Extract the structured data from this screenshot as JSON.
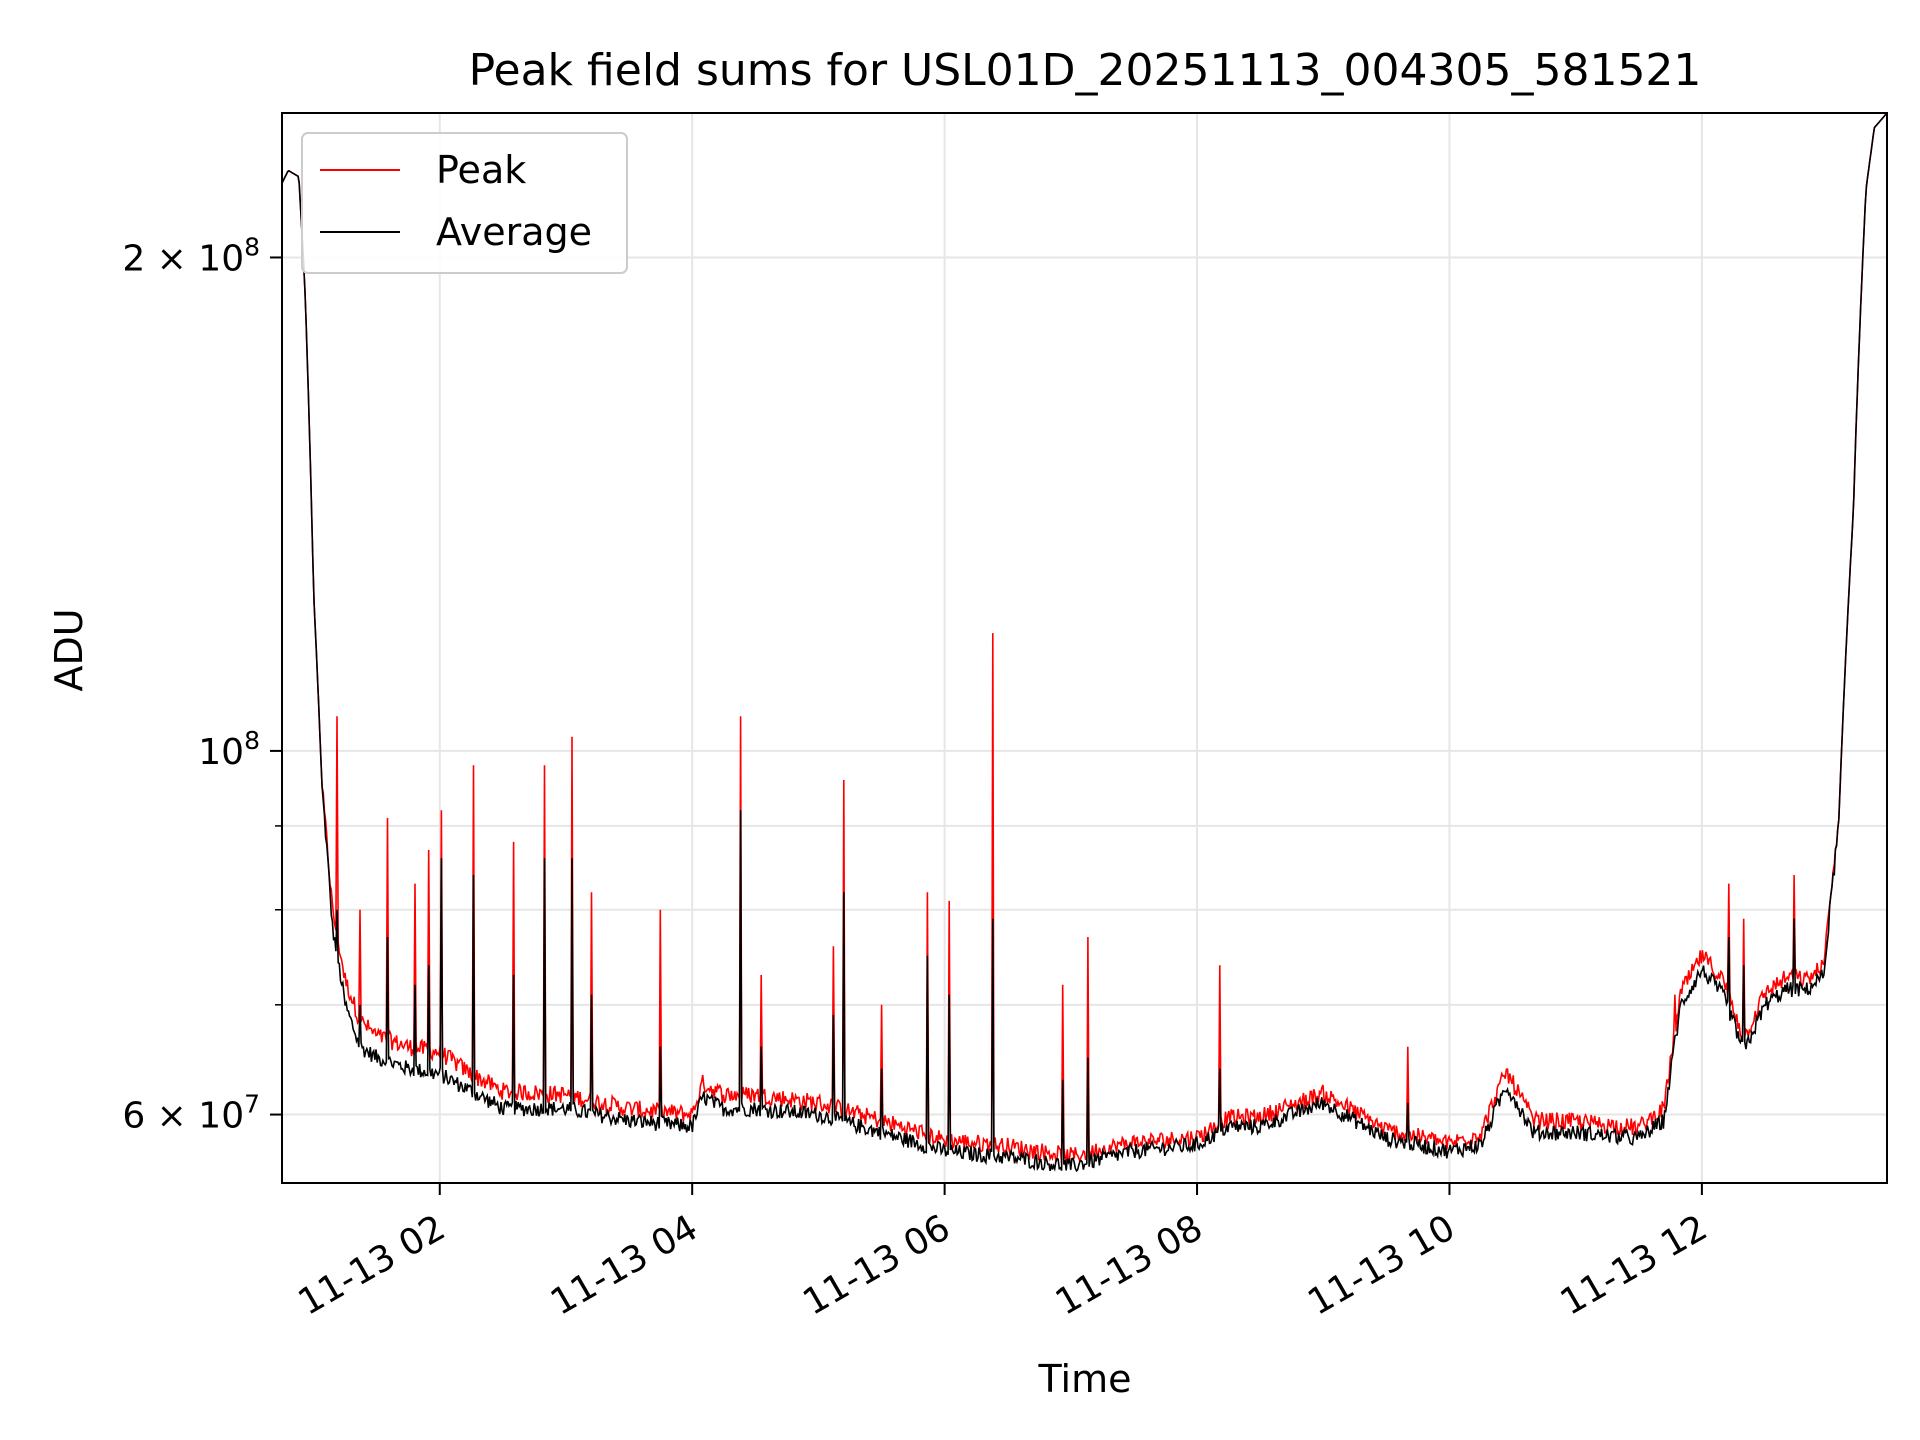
{
  "chart_data": {
    "type": "line",
    "title": "Peak field sums for USL01D_20251113_004305_581521",
    "xlabel": "Time",
    "ylabel": "ADU",
    "yscale": "log",
    "xlim": [
      "2025-11-13T00:45",
      "2025-11-13T13:28"
    ],
    "ylim": [
      54500000,
      245000000
    ],
    "grid": true,
    "legend_position": "top-left",
    "x_ticks": [
      {
        "value": "2025-11-13T02:00",
        "label": "11-13 02"
      },
      {
        "value": "2025-11-13T04:00",
        "label": "11-13 04"
      },
      {
        "value": "2025-11-13T06:00",
        "label": "11-13 06"
      },
      {
        "value": "2025-11-13T08:00",
        "label": "11-13 08"
      },
      {
        "value": "2025-11-13T10:00",
        "label": "11-13 10"
      },
      {
        "value": "2025-11-13T12:00",
        "label": "11-13 12"
      }
    ],
    "y_major_ticks": [
      {
        "value": 60000000,
        "mantissa": "6",
        "exponent": "7"
      },
      {
        "value": 100000000,
        "mantissa": "",
        "exponent": "8"
      },
      {
        "value": 200000000,
        "mantissa": "2",
        "exponent": "8"
      }
    ],
    "y_minor_ticks": [
      70000000,
      80000000,
      90000000
    ],
    "baseline": {
      "times": [
        "2025-11-13T00:45",
        "2025-11-13T00:48",
        "2025-11-13T00:53",
        "2025-11-13T00:56",
        "2025-11-13T01:00",
        "2025-11-13T01:04",
        "2025-11-13T01:09",
        "2025-11-13T01:15",
        "2025-11-13T01:22",
        "2025-11-13T01:30",
        "2025-11-13T01:45",
        "2025-11-13T02:00",
        "2025-11-13T02:15",
        "2025-11-13T02:30",
        "2025-11-13T03:00",
        "2025-11-13T03:30",
        "2025-11-13T04:00",
        "2025-11-13T04:05",
        "2025-11-13T04:15",
        "2025-11-13T04:30",
        "2025-11-13T05:00",
        "2025-11-13T05:30",
        "2025-11-13T06:00",
        "2025-11-13T06:30",
        "2025-11-13T07:00",
        "2025-11-13T07:30",
        "2025-11-13T08:00",
        "2025-11-13T08:15",
        "2025-11-13T08:30",
        "2025-11-13T09:00",
        "2025-11-13T09:30",
        "2025-11-13T10:00",
        "2025-11-13T10:15",
        "2025-11-13T10:27",
        "2025-11-13T10:40",
        "2025-11-13T11:00",
        "2025-11-13T11:30",
        "2025-11-13T11:42",
        "2025-11-13T11:50",
        "2025-11-13T12:00",
        "2025-11-13T12:10",
        "2025-11-13T12:20",
        "2025-11-13T12:30",
        "2025-11-13T12:40",
        "2025-11-13T12:50",
        "2025-11-13T12:58",
        "2025-11-13T13:05",
        "2025-11-13T13:12",
        "2025-11-13T13:18",
        "2025-11-13T13:22",
        "2025-11-13T13:28"
      ],
      "average": [
        222000000,
        226000000,
        224000000,
        190000000,
        125000000,
        95000000,
        78000000,
        70000000,
        66000000,
        65000000,
        64000000,
        63500000,
        62000000,
        60500000,
        60500000,
        59500000,
        59000000,
        61500000,
        60500000,
        60500000,
        60000000,
        58500000,
        57000000,
        56500000,
        55800000,
        57000000,
        57500000,
        59000000,
        59000000,
        61000000,
        58000000,
        57000000,
        57500000,
        62500000,
        58500000,
        58500000,
        58000000,
        59500000,
        70000000,
        73500000,
        71000000,
        65500000,
        70000000,
        71500000,
        71500000,
        73000000,
        90000000,
        140000000,
        220000000,
        240000000,
        245000000
      ],
      "peak_offset": [
        0,
        0,
        0,
        0,
        0,
        0,
        2000000,
        2500000,
        2500000,
        2000000,
        2000000,
        2000000,
        1500000,
        1500000,
        1200000,
        1000000,
        1000000,
        1200000,
        1200000,
        1200000,
        1000000,
        1000000,
        900000,
        900000,
        800000,
        700000,
        600000,
        700000,
        800000,
        800000,
        700000,
        600000,
        1000000,
        1200000,
        1000000,
        900000,
        900000,
        1000000,
        1200000,
        1500000,
        1500000,
        1200000,
        1200000,
        1200000,
        1000000,
        1000000,
        0,
        0,
        0,
        0,
        0
      ]
    },
    "spikes": [
      {
        "time": "2025-11-13T01:11",
        "peak": 105000000,
        "average": 80000000
      },
      {
        "time": "2025-11-13T01:22",
        "peak": 80000000,
        "average": 70000000
      },
      {
        "time": "2025-11-13T01:35",
        "peak": 91000000,
        "average": 77000000
      },
      {
        "time": "2025-11-13T01:48",
        "peak": 83000000,
        "average": 72000000
      },
      {
        "time": "2025-11-13T01:55",
        "peak": 87000000,
        "average": 74000000
      },
      {
        "time": "2025-11-13T02:01",
        "peak": 92000000,
        "average": 86000000
      },
      {
        "time": "2025-11-13T02:16",
        "peak": 98000000,
        "average": 84000000
      },
      {
        "time": "2025-11-13T02:35",
        "peak": 88000000,
        "average": 73000000
      },
      {
        "time": "2025-11-13T02:50",
        "peak": 98000000,
        "average": 86000000
      },
      {
        "time": "2025-11-13T03:03",
        "peak": 102000000,
        "average": 86000000
      },
      {
        "time": "2025-11-13T03:12",
        "peak": 82000000,
        "average": 71000000
      },
      {
        "time": "2025-11-13T03:45",
        "peak": 80000000,
        "average": 66000000
      },
      {
        "time": "2025-11-13T04:23",
        "peak": 105000000,
        "average": 92000000
      },
      {
        "time": "2025-11-13T04:33",
        "peak": 73000000,
        "average": 66000000
      },
      {
        "time": "2025-11-13T05:07",
        "peak": 76000000,
        "average": 69000000
      },
      {
        "time": "2025-11-13T05:12",
        "peak": 96000000,
        "average": 82000000
      },
      {
        "time": "2025-11-13T05:30",
        "peak": 70000000,
        "average": 64000000
      },
      {
        "time": "2025-11-13T05:52",
        "peak": 82000000,
        "average": 75000000
      },
      {
        "time": "2025-11-13T06:02",
        "peak": 81000000,
        "average": 71000000
      },
      {
        "time": "2025-11-13T06:23",
        "peak": 118000000,
        "average": 79000000
      },
      {
        "time": "2025-11-13T06:56",
        "peak": 72000000,
        "average": 63000000
      },
      {
        "time": "2025-11-13T07:08",
        "peak": 77000000,
        "average": 65000000
      },
      {
        "time": "2025-11-13T08:11",
        "peak": 74000000,
        "average": 64000000
      },
      {
        "time": "2025-11-13T09:40",
        "peak": 66000000,
        "average": 61000000
      },
      {
        "time": "2025-11-13T11:47",
        "peak": 71000000,
        "average": 67000000
      },
      {
        "time": "2025-11-13T12:13",
        "peak": 83000000,
        "average": 77000000
      },
      {
        "time": "2025-11-13T12:20",
        "peak": 79000000,
        "average": 74000000
      },
      {
        "time": "2025-11-13T12:44",
        "peak": 84000000,
        "average": 79000000
      }
    ],
    "series": [
      {
        "name": "Peak",
        "color": "#ff0000"
      },
      {
        "name": "Average",
        "color": "#000000"
      }
    ]
  }
}
